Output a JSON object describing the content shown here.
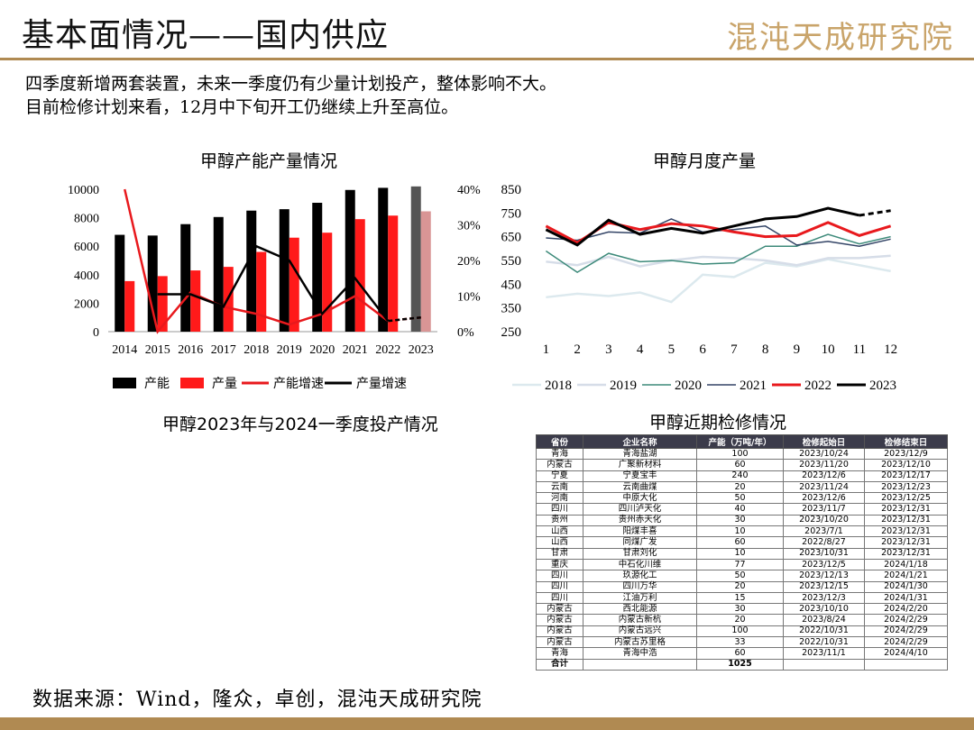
{
  "header": {
    "title": "基本面情况——国内供应",
    "logo": "混沌天成研究院"
  },
  "intro": {
    "line1": "四季度新增两套装置，未来一季度仍有少量计划投产，整体影响不大。",
    "line2": "目前检修计划来看，12月中下旬开工仍继续上升至高位。"
  },
  "chart_data": [
    {
      "type": "bar",
      "title": "甲醇产能产量情况",
      "categories": [
        "2014",
        "2015",
        "2016",
        "2017",
        "2018",
        "2019",
        "2020",
        "2021",
        "2022",
        "2023"
      ],
      "ylim": [
        0,
        10000
      ],
      "y_ticks": [
        "0",
        "2000",
        "4000",
        "6000",
        "8000",
        "10000"
      ],
      "y2lim": [
        0,
        0.4
      ],
      "y2_ticks": [
        "0%",
        "10%",
        "20%",
        "30%",
        "40%"
      ],
      "series": [
        {
          "name": "产能",
          "kind": "bar",
          "axis": "left",
          "color": "#000000",
          "values": [
            6800,
            6750,
            7550,
            8050,
            8500,
            8600,
            9050,
            9950,
            10100,
            10200
          ]
        },
        {
          "name": "产量",
          "kind": "bar",
          "axis": "left",
          "color": "#ff1a1a",
          "values": [
            3550,
            3900,
            4300,
            4550,
            5600,
            6600,
            6950,
            7900,
            8150,
            8450
          ]
        },
        {
          "name": "产能增速",
          "kind": "line",
          "axis": "right",
          "color": "#e8191d",
          "values": [
            0.4,
            0.0,
            0.11,
            0.07,
            0.05,
            0.02,
            0.05,
            0.1,
            0.03,
            0.04
          ]
        },
        {
          "name": "产量增速",
          "kind": "line",
          "axis": "right",
          "color": "#000000",
          "values": [
            null,
            0.105,
            0.105,
            0.07,
            0.24,
            0.2,
            0.05,
            0.15,
            0.03,
            0.04
          ]
        }
      ],
      "legend_position": "bottom"
    },
    {
      "type": "line",
      "title": "甲醇月度产量",
      "x": [
        "1",
        "2",
        "3",
        "4",
        "5",
        "6",
        "7",
        "8",
        "9",
        "10",
        "11",
        "12"
      ],
      "ylim": [
        250,
        850
      ],
      "y_ticks": [
        "250",
        "350",
        "450",
        "550",
        "650",
        "750",
        "850"
      ],
      "series": [
        {
          "name": "2018",
          "color": "#dce9ee",
          "width": 2.5,
          "values": [
            395,
            410,
            400,
            415,
            375,
            490,
            480,
            540,
            525,
            555,
            530,
            505
          ]
        },
        {
          "name": "2019",
          "color": "#d6dde8",
          "width": 2.5,
          "values": [
            545,
            530,
            565,
            525,
            550,
            565,
            560,
            550,
            530,
            560,
            560,
            570
          ]
        },
        {
          "name": "2020",
          "color": "#3d8a7a",
          "width": 1.5,
          "values": [
            590,
            500,
            580,
            545,
            550,
            535,
            540,
            610,
            610,
            660,
            620,
            650
          ]
        },
        {
          "name": "2021",
          "color": "#334466",
          "width": 1.5,
          "values": [
            645,
            635,
            670,
            665,
            725,
            670,
            680,
            695,
            615,
            630,
            610,
            640
          ]
        },
        {
          "name": "2022",
          "color": "#e8191d",
          "width": 3,
          "values": [
            695,
            625,
            710,
            680,
            705,
            695,
            670,
            650,
            655,
            710,
            655,
            695
          ]
        },
        {
          "name": "2023",
          "color": "#000000",
          "width": 3,
          "values": [
            680,
            615,
            720,
            660,
            685,
            665,
            695,
            725,
            735,
            770,
            740,
            760
          ]
        }
      ],
      "legend_position": "bottom"
    }
  ],
  "bottom_left_title": "甲醇2023年与2024一季度投产情况",
  "maintenance": {
    "title": "甲醇近期检修情况",
    "headers": [
      "省份",
      "企业名称",
      "产能（万吨/年）",
      "检修起始日",
      "检修结束日"
    ],
    "rows": [
      [
        "青海",
        "青海盐湖",
        "100",
        "2023/10/24",
        "2023/12/9"
      ],
      [
        "内蒙古",
        "广聚新材料",
        "60",
        "2023/11/20",
        "2023/12/10"
      ],
      [
        "宁夏",
        "宁夏宝丰",
        "240",
        "2023/12/6",
        "2023/12/17"
      ],
      [
        "云南",
        "云南曲煤",
        "20",
        "2023/11/24",
        "2023/12/23"
      ],
      [
        "河南",
        "中原大化",
        "50",
        "2023/12/6",
        "2023/12/25"
      ],
      [
        "四川",
        "四川泸天化",
        "40",
        "2023/11/7",
        "2023/12/31"
      ],
      [
        "贵州",
        "贵州赤天化",
        "30",
        "2023/10/20",
        "2023/12/31"
      ],
      [
        "山西",
        "阳煤丰喜",
        "10",
        "2023/7/1",
        "2023/12/31"
      ],
      [
        "山西",
        "同煤广发",
        "60",
        "2022/8/27",
        "2023/12/31"
      ],
      [
        "甘肃",
        "甘肃刘化",
        "10",
        "2023/10/31",
        "2023/12/31"
      ],
      [
        "重庆",
        "中石化川维",
        "77",
        "2023/12/5",
        "2024/1/18"
      ],
      [
        "四川",
        "玖源化工",
        "50",
        "2023/12/13",
        "2024/1/21"
      ],
      [
        "四川",
        "四川万华",
        "20",
        "2023/12/15",
        "2024/1/30"
      ],
      [
        "四川",
        "江油万利",
        "15",
        "2023/12/3",
        "2024/1/31"
      ],
      [
        "内蒙古",
        "西北能源",
        "30",
        "2023/10/10",
        "2024/2/20"
      ],
      [
        "内蒙古",
        "内蒙古新杭",
        "20",
        "2023/8/24",
        "2024/2/29"
      ],
      [
        "内蒙古",
        "内蒙古远兴",
        "100",
        "2022/10/31",
        "2024/2/29"
      ],
      [
        "内蒙古",
        "内蒙古苏里格",
        "33",
        "2022/10/31",
        "2024/2/29"
      ],
      [
        "青海",
        "青海中浩",
        "60",
        "2023/11/1",
        "2024/4/10"
      ]
    ],
    "total_label": "合计",
    "total_value": "1025"
  },
  "footer": {
    "source": "数据来源：Wind，隆众，卓创，混沌天成研究院"
  }
}
